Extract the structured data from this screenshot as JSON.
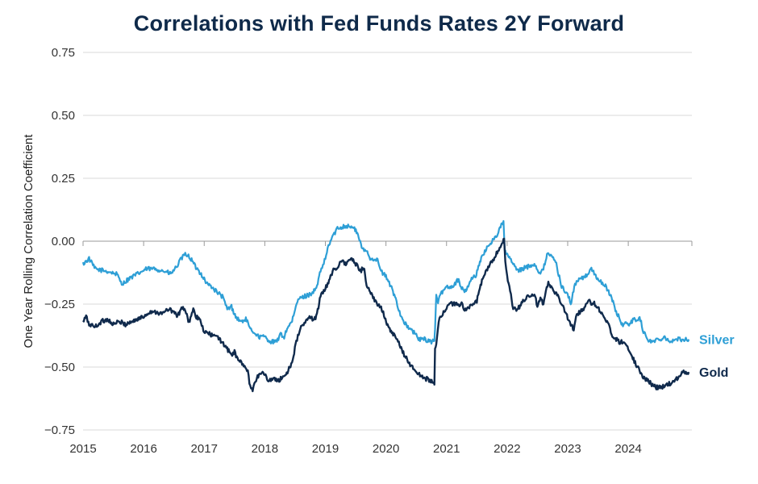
{
  "chart_data": {
    "type": "line",
    "title": "Correlations with Fed Funds Rates 2Y Forward",
    "xlabel": "",
    "ylabel": "One Year Rolling Correlation Coefficient",
    "xlim": [
      2015,
      2025.05
    ],
    "ylim": [
      -0.75,
      0.75
    ],
    "yticks": [
      0.75,
      0.5,
      0.25,
      0,
      -0.25,
      -0.5,
      -0.75
    ],
    "ytick_labels": [
      "0.75",
      "0.50",
      "0.25",
      "0.00",
      "−0.25",
      "−0.50",
      "−0.75"
    ],
    "xticks": [
      2015,
      2016,
      2017,
      2018,
      2019,
      2020,
      2021,
      2022,
      2023,
      2024
    ],
    "xtick_labels": [
      "2015",
      "2016",
      "2017",
      "2018",
      "2019",
      "2020",
      "2021",
      "2022",
      "2023",
      "2024"
    ],
    "grid": "horizontal",
    "series": [
      {
        "name": "Silver",
        "color": "#2e9fd6",
        "points": [
          [
            2015.0,
            -0.09
          ],
          [
            2015.1,
            -0.07
          ],
          [
            2015.2,
            -0.11
          ],
          [
            2015.4,
            -0.12
          ],
          [
            2015.55,
            -0.13
          ],
          [
            2015.65,
            -0.17
          ],
          [
            2015.75,
            -0.15
          ],
          [
            2015.9,
            -0.13
          ],
          [
            2016.05,
            -0.11
          ],
          [
            2016.2,
            -0.11
          ],
          [
            2016.35,
            -0.12
          ],
          [
            2016.45,
            -0.13
          ],
          [
            2016.55,
            -0.1
          ],
          [
            2016.62,
            -0.07
          ],
          [
            2016.7,
            -0.05
          ],
          [
            2016.78,
            -0.07
          ],
          [
            2016.85,
            -0.1
          ],
          [
            2016.95,
            -0.13
          ],
          [
            2017.05,
            -0.17
          ],
          [
            2017.12,
            -0.18
          ],
          [
            2017.2,
            -0.2
          ],
          [
            2017.3,
            -0.22
          ],
          [
            2017.38,
            -0.27
          ],
          [
            2017.45,
            -0.26
          ],
          [
            2017.52,
            -0.3
          ],
          [
            2017.6,
            -0.32
          ],
          [
            2017.7,
            -0.31
          ],
          [
            2017.75,
            -0.35
          ],
          [
            2017.82,
            -0.36
          ],
          [
            2017.9,
            -0.38
          ],
          [
            2018.0,
            -0.38
          ],
          [
            2018.1,
            -0.4
          ],
          [
            2018.2,
            -0.4
          ],
          [
            2018.25,
            -0.37
          ],
          [
            2018.32,
            -0.38
          ],
          [
            2018.38,
            -0.34
          ],
          [
            2018.45,
            -0.32
          ],
          [
            2018.55,
            -0.23
          ],
          [
            2018.65,
            -0.22
          ],
          [
            2018.75,
            -0.21
          ],
          [
            2018.85,
            -0.19
          ],
          [
            2018.92,
            -0.12
          ],
          [
            2019.0,
            -0.07
          ],
          [
            2019.05,
            -0.02
          ],
          [
            2019.12,
            0.02
          ],
          [
            2019.2,
            0.05
          ],
          [
            2019.3,
            0.06
          ],
          [
            2019.4,
            0.06
          ],
          [
            2019.48,
            0.05
          ],
          [
            2019.55,
            0.02
          ],
          [
            2019.6,
            -0.03
          ],
          [
            2019.68,
            -0.04
          ],
          [
            2019.75,
            -0.07
          ],
          [
            2019.85,
            -0.07
          ],
          [
            2019.92,
            -0.12
          ],
          [
            2020.0,
            -0.14
          ],
          [
            2020.08,
            -0.18
          ],
          [
            2020.15,
            -0.22
          ],
          [
            2020.25,
            -0.3
          ],
          [
            2020.35,
            -0.34
          ],
          [
            2020.45,
            -0.36
          ],
          [
            2020.55,
            -0.39
          ],
          [
            2020.65,
            -0.39
          ],
          [
            2020.75,
            -0.4
          ],
          [
            2020.8,
            -0.39
          ],
          [
            2020.81,
            -0.35
          ],
          [
            2020.83,
            -0.22
          ],
          [
            2020.86,
            -0.24
          ],
          [
            2020.93,
            -0.2
          ],
          [
            2021.0,
            -0.18
          ],
          [
            2021.1,
            -0.18
          ],
          [
            2021.2,
            -0.15
          ],
          [
            2021.25,
            -0.19
          ],
          [
            2021.32,
            -0.2
          ],
          [
            2021.4,
            -0.15
          ],
          [
            2021.48,
            -0.14
          ],
          [
            2021.55,
            -0.08
          ],
          [
            2021.62,
            -0.05
          ],
          [
            2021.68,
            -0.02
          ],
          [
            2021.75,
            0.0
          ],
          [
            2021.82,
            0.02
          ],
          [
            2021.88,
            0.05
          ],
          [
            2021.94,
            0.08
          ],
          [
            2021.96,
            -0.03
          ],
          [
            2021.98,
            -0.05
          ],
          [
            2022.05,
            -0.07
          ],
          [
            2022.1,
            -0.09
          ],
          [
            2022.18,
            -0.12
          ],
          [
            2022.25,
            -0.11
          ],
          [
            2022.35,
            -0.1
          ],
          [
            2022.45,
            -0.09
          ],
          [
            2022.55,
            -0.13
          ],
          [
            2022.6,
            -0.11
          ],
          [
            2022.67,
            -0.04
          ],
          [
            2022.72,
            -0.06
          ],
          [
            2022.8,
            -0.08
          ],
          [
            2022.9,
            -0.18
          ],
          [
            2023.0,
            -0.21
          ],
          [
            2023.05,
            -0.25
          ],
          [
            2023.12,
            -0.17
          ],
          [
            2023.2,
            -0.15
          ],
          [
            2023.3,
            -0.14
          ],
          [
            2023.38,
            -0.11
          ],
          [
            2023.45,
            -0.13
          ],
          [
            2023.52,
            -0.16
          ],
          [
            2023.6,
            -0.17
          ],
          [
            2023.7,
            -0.21
          ],
          [
            2023.8,
            -0.28
          ],
          [
            2023.9,
            -0.33
          ],
          [
            2024.0,
            -0.33
          ],
          [
            2024.1,
            -0.31
          ],
          [
            2024.2,
            -0.31
          ],
          [
            2024.25,
            -0.36
          ],
          [
            2024.32,
            -0.39
          ],
          [
            2024.4,
            -0.4
          ],
          [
            2024.5,
            -0.39
          ],
          [
            2024.6,
            -0.38
          ],
          [
            2024.7,
            -0.4
          ],
          [
            2024.8,
            -0.39
          ],
          [
            2024.9,
            -0.39
          ],
          [
            2025.0,
            -0.39
          ]
        ]
      },
      {
        "name": "Gold",
        "color": "#102a4c",
        "points": [
          [
            2015.0,
            -0.32
          ],
          [
            2015.05,
            -0.3
          ],
          [
            2015.1,
            -0.33
          ],
          [
            2015.2,
            -0.34
          ],
          [
            2015.3,
            -0.32
          ],
          [
            2015.4,
            -0.31
          ],
          [
            2015.5,
            -0.33
          ],
          [
            2015.6,
            -0.32
          ],
          [
            2015.7,
            -0.33
          ],
          [
            2015.8,
            -0.32
          ],
          [
            2015.9,
            -0.31
          ],
          [
            2016.0,
            -0.3
          ],
          [
            2016.1,
            -0.28
          ],
          [
            2016.2,
            -0.28
          ],
          [
            2016.3,
            -0.29
          ],
          [
            2016.4,
            -0.27
          ],
          [
            2016.5,
            -0.28
          ],
          [
            2016.55,
            -0.3
          ],
          [
            2016.6,
            -0.28
          ],
          [
            2016.65,
            -0.26
          ],
          [
            2016.7,
            -0.29
          ],
          [
            2016.75,
            -0.32
          ],
          [
            2016.82,
            -0.27
          ],
          [
            2016.86,
            -0.3
          ],
          [
            2016.92,
            -0.31
          ],
          [
            2017.0,
            -0.36
          ],
          [
            2017.1,
            -0.37
          ],
          [
            2017.2,
            -0.38
          ],
          [
            2017.3,
            -0.4
          ],
          [
            2017.38,
            -0.43
          ],
          [
            2017.45,
            -0.45
          ],
          [
            2017.5,
            -0.44
          ],
          [
            2017.55,
            -0.47
          ],
          [
            2017.6,
            -0.48
          ],
          [
            2017.68,
            -0.5
          ],
          [
            2017.72,
            -0.52
          ],
          [
            2017.76,
            -0.58
          ],
          [
            2017.8,
            -0.59
          ],
          [
            2017.83,
            -0.56
          ],
          [
            2017.88,
            -0.54
          ],
          [
            2017.95,
            -0.52
          ],
          [
            2018.0,
            -0.53
          ],
          [
            2018.05,
            -0.55
          ],
          [
            2018.15,
            -0.55
          ],
          [
            2018.25,
            -0.55
          ],
          [
            2018.35,
            -0.53
          ],
          [
            2018.45,
            -0.48
          ],
          [
            2018.52,
            -0.4
          ],
          [
            2018.6,
            -0.34
          ],
          [
            2018.68,
            -0.32
          ],
          [
            2018.75,
            -0.3
          ],
          [
            2018.8,
            -0.31
          ],
          [
            2018.85,
            -0.3
          ],
          [
            2018.92,
            -0.22
          ],
          [
            2019.0,
            -0.19
          ],
          [
            2019.05,
            -0.16
          ],
          [
            2019.12,
            -0.12
          ],
          [
            2019.2,
            -0.1
          ],
          [
            2019.28,
            -0.08
          ],
          [
            2019.35,
            -0.09
          ],
          [
            2019.42,
            -0.07
          ],
          [
            2019.5,
            -0.09
          ],
          [
            2019.58,
            -0.12
          ],
          [
            2019.63,
            -0.1
          ],
          [
            2019.68,
            -0.17
          ],
          [
            2019.75,
            -0.21
          ],
          [
            2019.85,
            -0.25
          ],
          [
            2019.92,
            -0.26
          ],
          [
            2019.98,
            -0.3
          ],
          [
            2020.05,
            -0.35
          ],
          [
            2020.12,
            -0.37
          ],
          [
            2020.2,
            -0.4
          ],
          [
            2020.3,
            -0.45
          ],
          [
            2020.4,
            -0.49
          ],
          [
            2020.5,
            -0.52
          ],
          [
            2020.6,
            -0.54
          ],
          [
            2020.7,
            -0.55
          ],
          [
            2020.78,
            -0.56
          ],
          [
            2020.8,
            -0.57
          ],
          [
            2020.81,
            -0.43
          ],
          [
            2020.83,
            -0.41
          ],
          [
            2020.87,
            -0.32
          ],
          [
            2020.95,
            -0.28
          ],
          [
            2021.05,
            -0.25
          ],
          [
            2021.15,
            -0.25
          ],
          [
            2021.25,
            -0.25
          ],
          [
            2021.3,
            -0.27
          ],
          [
            2021.4,
            -0.26
          ],
          [
            2021.5,
            -0.24
          ],
          [
            2021.55,
            -0.18
          ],
          [
            2021.62,
            -0.14
          ],
          [
            2021.7,
            -0.1
          ],
          [
            2021.78,
            -0.07
          ],
          [
            2021.85,
            -0.04
          ],
          [
            2021.93,
            -0.01
          ],
          [
            2021.95,
            0.01
          ],
          [
            2021.97,
            -0.08
          ],
          [
            2022.0,
            -0.14
          ],
          [
            2022.05,
            -0.2
          ],
          [
            2022.1,
            -0.27
          ],
          [
            2022.18,
            -0.27
          ],
          [
            2022.25,
            -0.24
          ],
          [
            2022.35,
            -0.22
          ],
          [
            2022.45,
            -0.21
          ],
          [
            2022.5,
            -0.26
          ],
          [
            2022.55,
            -0.23
          ],
          [
            2022.6,
            -0.25
          ],
          [
            2022.68,
            -0.16
          ],
          [
            2022.75,
            -0.19
          ],
          [
            2022.85,
            -0.22
          ],
          [
            2022.95,
            -0.28
          ],
          [
            2023.05,
            -0.33
          ],
          [
            2023.1,
            -0.35
          ],
          [
            2023.15,
            -0.29
          ],
          [
            2023.25,
            -0.27
          ],
          [
            2023.35,
            -0.24
          ],
          [
            2023.45,
            -0.25
          ],
          [
            2023.55,
            -0.28
          ],
          [
            2023.65,
            -0.32
          ],
          [
            2023.75,
            -0.38
          ],
          [
            2023.85,
            -0.4
          ],
          [
            2023.95,
            -0.4
          ],
          [
            2024.05,
            -0.45
          ],
          [
            2024.15,
            -0.5
          ],
          [
            2024.25,
            -0.54
          ],
          [
            2024.35,
            -0.56
          ],
          [
            2024.45,
            -0.58
          ],
          [
            2024.55,
            -0.58
          ],
          [
            2024.65,
            -0.57
          ],
          [
            2024.75,
            -0.56
          ],
          [
            2024.82,
            -0.54
          ],
          [
            2024.9,
            -0.52
          ],
          [
            2025.0,
            -0.52
          ]
        ]
      }
    ]
  }
}
